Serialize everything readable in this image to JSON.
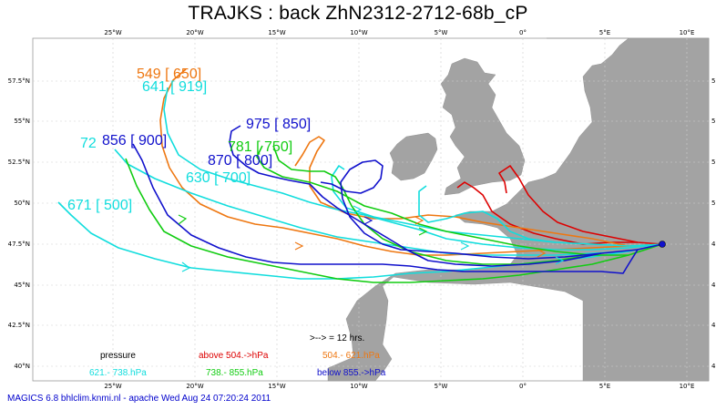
{
  "title": "TRAJKS : back ZhN2312-2712-68b_cP",
  "footer": "MAGICS 6.8 bhlclim.knmi.nl - apache Wed Aug 24 07:20:24 2011",
  "axes": {
    "lon_ticks": [
      "25°W",
      "20°W",
      "15°W",
      "10°W",
      "5°W",
      "0°",
      "5°E",
      "10°E"
    ],
    "lat_ticks": [
      "57.5°N",
      "55°N",
      "52.5°N",
      "50°N",
      "47.5°N",
      "45°N",
      "42.5°N",
      "40°N"
    ]
  },
  "arrow_note": ">--> = 12 hrs.",
  "legend": {
    "title": "pressure",
    "items": [
      {
        "label": "above  504.->hPa",
        "color": "#dd0000"
      },
      {
        "label": "504.-    621.hPa",
        "color": "#ee7711"
      },
      {
        "label": "621.-    738.hPa",
        "color": "#11dddd"
      },
      {
        "label": "738.-    855.hPa",
        "color": "#11cc11"
      },
      {
        "label": "below  855.->hPa",
        "color": "#1111cc"
      }
    ]
  },
  "trajectory_labels": [
    {
      "text": "549 [ 650]",
      "color": "#ee7711"
    },
    {
      "text": "641 [ 919]",
      "color": "#11dddd"
    },
    {
      "text": "975 [ 850]",
      "color": "#1111cc"
    },
    {
      "text": "72",
      "color": "#11dddd"
    },
    {
      "text": "856 [ 900]",
      "color": "#1111cc"
    },
    {
      "text": "781 [ 750]",
      "color": "#11cc11"
    },
    {
      "text": "870 [ 800]",
      "color": "#1111cc"
    },
    {
      "text": "630 [ 700]",
      "color": "#11dddd"
    },
    {
      "text": "671 [ 500]",
      "color": "#11dddd"
    }
  ],
  "colors": {
    "land": "#a3a3a3",
    "red": "#dd0000",
    "orange": "#ee7711",
    "cyan": "#11dddd",
    "green": "#11cc11",
    "blue": "#1111cc"
  }
}
